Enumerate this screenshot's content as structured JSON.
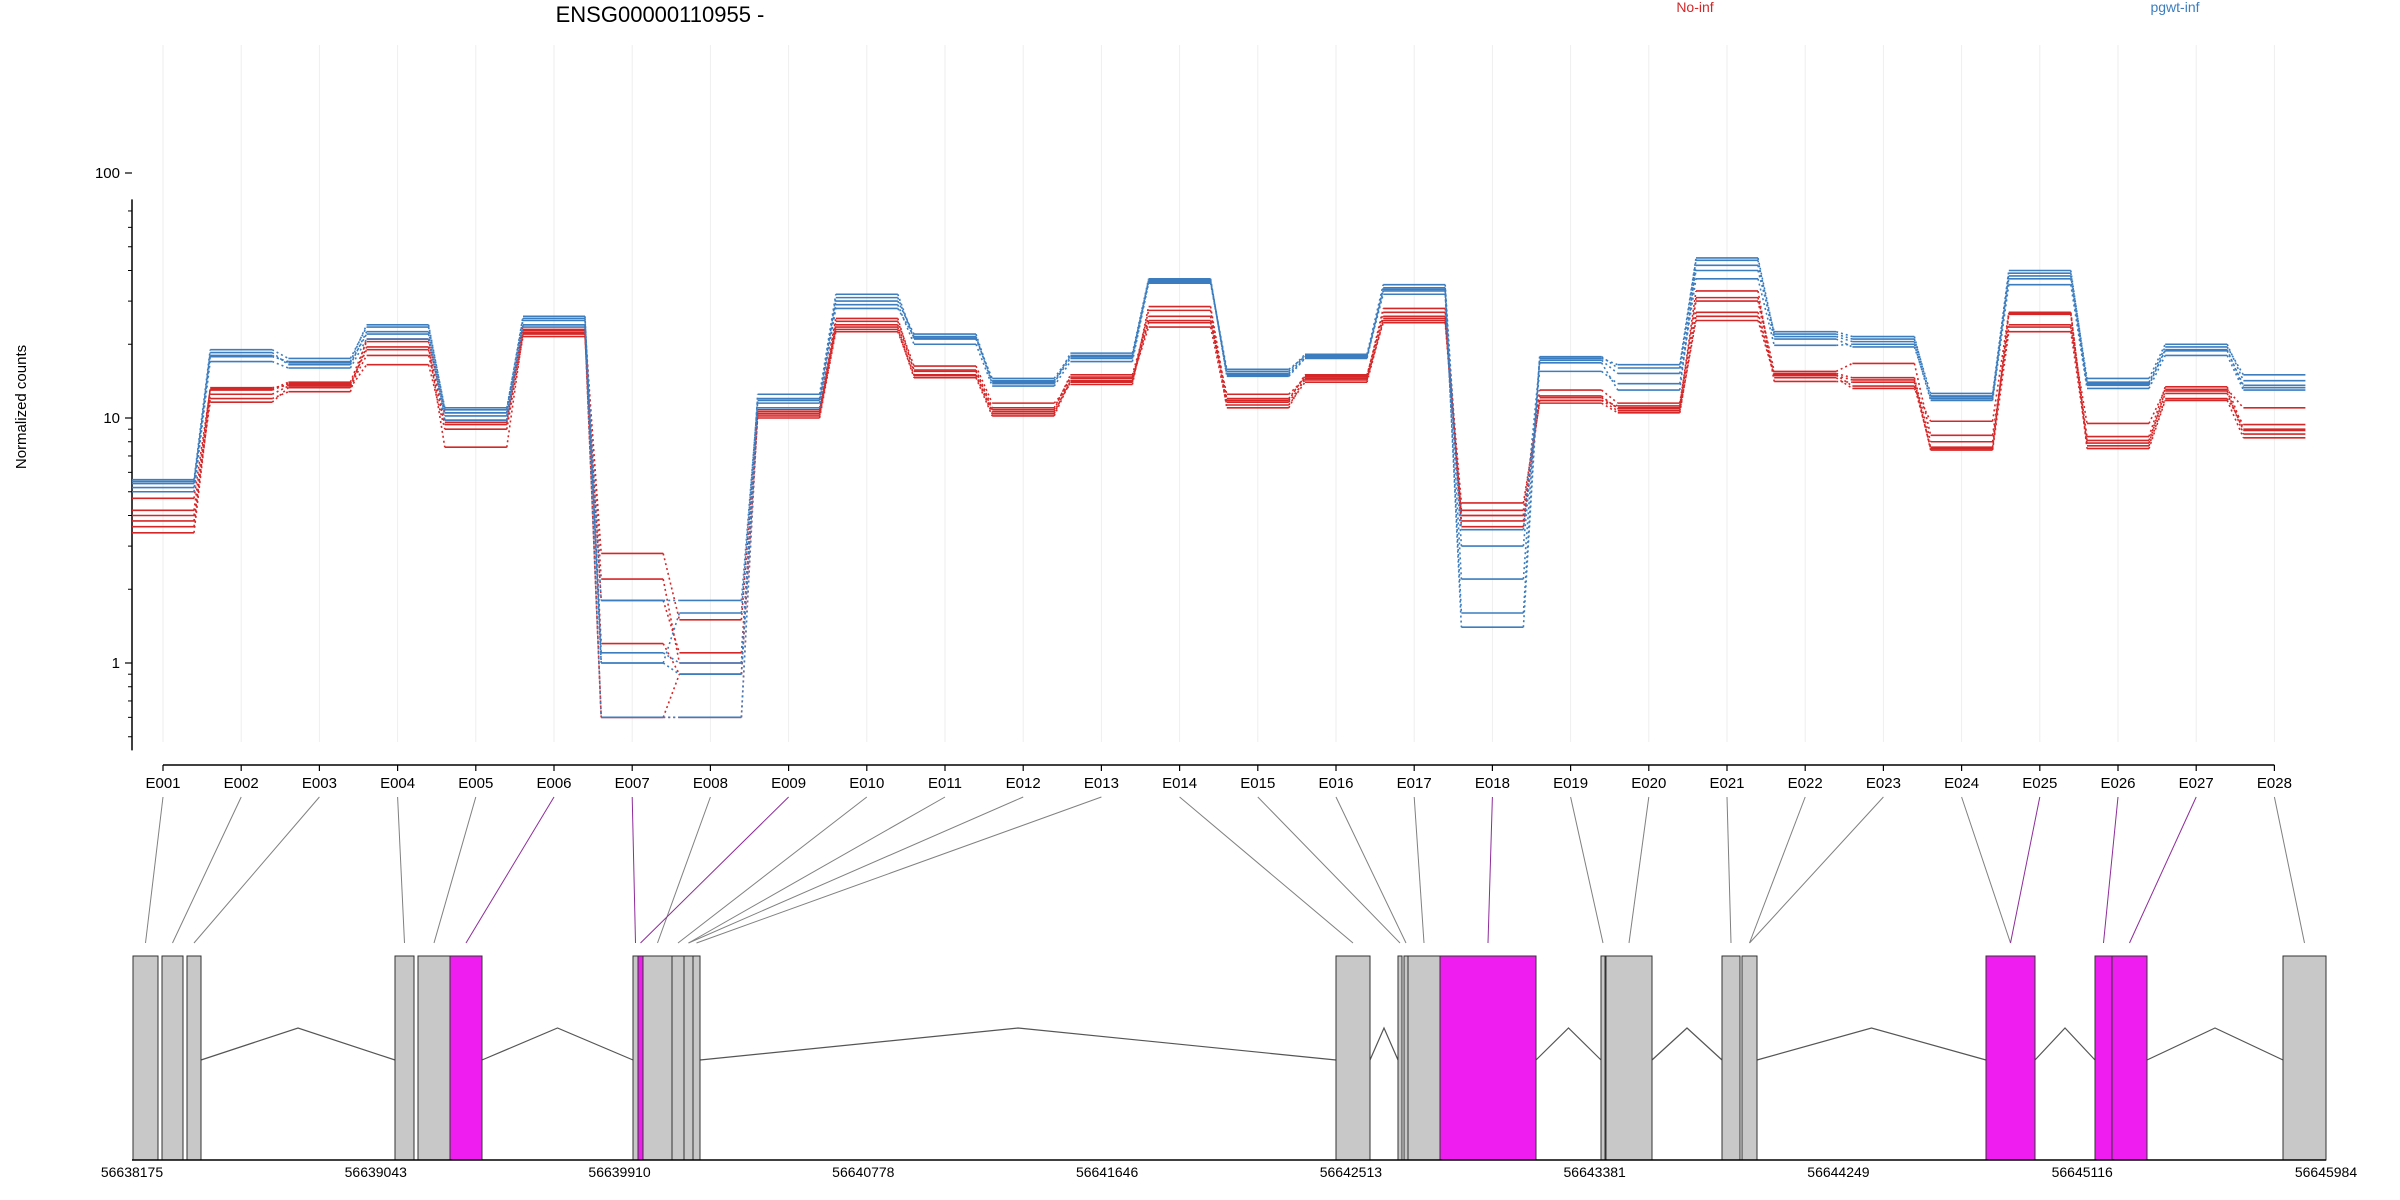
{
  "title": "ENSG00000110955 -",
  "colors": {
    "no_inf": "#d62728",
    "pgwt_inf": "#3b7dbf",
    "exon_default": "#c8c8c8",
    "exon_highlight": "#f01df0",
    "link_default": "#808080",
    "link_highlight": "#8e2c9a"
  },
  "legend": [
    {
      "name": "No-inf",
      "color": "#d62728"
    },
    {
      "name": "pgwt-inf",
      "color": "#3b7dbf"
    }
  ],
  "chart_data": {
    "type": "line",
    "title": "ENSG00000110955 -",
    "ylabel": "Normalized counts",
    "yscale": "log",
    "ylim": [
      0.44,
      78
    ],
    "y_tick_labels": [
      "1",
      "10",
      "100"
    ],
    "y_ticks": [
      1,
      10,
      100
    ],
    "categories": [
      "E001",
      "E002",
      "E003",
      "E004",
      "E005",
      "E006",
      "E007",
      "E008",
      "E009",
      "E010",
      "E011",
      "E012",
      "E013",
      "E014",
      "E015",
      "E016",
      "E017",
      "E018",
      "E019",
      "E020",
      "E021",
      "E022",
      "E023",
      "E024",
      "E025",
      "E026",
      "E027",
      "E028"
    ],
    "highlighted_exons": [
      "E006",
      "E007",
      "E009",
      "E018",
      "E025",
      "E026",
      "E027"
    ],
    "series": [
      {
        "group": "No-inf",
        "color": "#d62728",
        "values": [
          4.7,
          13.0,
          13.8,
          19.0,
          9.8,
          22.7,
          0.6,
          0.6,
          10.4,
          23.5,
          14.9,
          10.4,
          14.5,
          23.5,
          11.3,
          14.0,
          25.0,
          4.0,
          11.8,
          10.7,
          25.0,
          14.9,
          14.3,
          7.4,
          22.5,
          7.9,
          12.9,
          8.6
        ]
      },
      {
        "group": "No-inf",
        "color": "#d62728",
        "values": [
          4.2,
          13.1,
          14.0,
          20.5,
          10.5,
          24.0,
          2.2,
          1.0,
          10.8,
          25.5,
          15.5,
          10.8,
          15.0,
          26.0,
          12.0,
          14.8,
          27.0,
          3.6,
          12.1,
          11.0,
          27.0,
          15.2,
          14.6,
          8.0,
          24.0,
          8.4,
          13.4,
          9.0
        ]
      },
      {
        "group": "No-inf",
        "color": "#d62728",
        "values": [
          3.4,
          12.5,
          13.5,
          18.0,
          9.4,
          22.0,
          1.2,
          0.9,
          10.2,
          23.0,
          14.6,
          10.2,
          14.2,
          25.0,
          11.6,
          14.3,
          25.5,
          4.5,
          11.5,
          10.5,
          26.0,
          15.0,
          13.5,
          7.6,
          26.5,
          8.1,
          12.6,
          8.9
        ]
      },
      {
        "group": "No-inf",
        "color": "#d62728",
        "values": [
          4.0,
          11.6,
          13.3,
          16.5,
          9.0,
          21.5,
          1.8,
          1.1,
          10.0,
          22.5,
          15.0,
          10.6,
          14.0,
          27.5,
          11.0,
          14.7,
          28.0,
          4.2,
          13.0,
          11.5,
          30.0,
          14.6,
          13.2,
          9.7,
          27.0,
          7.7,
          12.0,
          9.4
        ]
      },
      {
        "group": "No-inf",
        "color": "#d62728",
        "values": [
          3.8,
          12.0,
          12.8,
          21.0,
          9.6,
          23.0,
          2.8,
          1.5,
          10.6,
          24.0,
          15.7,
          11.0,
          14.7,
          24.5,
          12.5,
          14.5,
          24.5,
          3.8,
          12.3,
          10.9,
          31.0,
          15.5,
          16.7,
          8.5,
          23.5,
          9.5,
          13.1,
          11.0
        ]
      },
      {
        "group": "No-inf",
        "color": "#d62728",
        "values": [
          3.6,
          13.3,
          13.6,
          19.5,
          7.6,
          22.3,
          0.6,
          0.9,
          10.4,
          24.8,
          16.3,
          11.5,
          13.7,
          28.5,
          11.8,
          15.0,
          26.0,
          4.0,
          11.8,
          11.2,
          33.0,
          14.1,
          14.0,
          7.5,
          26.8,
          7.5,
          11.8,
          8.3
        ]
      },
      {
        "group": "pgwt-inf",
        "color": "#3b7dbf",
        "values": [
          5.4,
          17.8,
          17.0,
          24.0,
          10.8,
          26.0,
          1.0,
          0.9,
          12.5,
          32.0,
          21.0,
          14.5,
          18.0,
          36.5,
          15.2,
          18.0,
          33.0,
          1.4,
          17.5,
          16.5,
          45.0,
          22.0,
          21.0,
          12.6,
          40.0,
          14.0,
          19.5,
          15.0
        ]
      },
      {
        "group": "pgwt-inf",
        "color": "#3b7dbf",
        "values": [
          5.6,
          19.0,
          17.5,
          23.5,
          11.0,
          25.0,
          1.1,
          1.0,
          12.0,
          30.0,
          22.0,
          14.0,
          17.5,
          36.0,
          15.8,
          17.8,
          32.0,
          1.6,
          17.8,
          16.0,
          44.0,
          21.5,
          20.5,
          12.2,
          39.0,
          14.5,
          20.0,
          14.2
        ]
      },
      {
        "group": "pgwt-inf",
        "color": "#3b7dbf",
        "values": [
          5.2,
          18.5,
          16.5,
          22.5,
          10.2,
          24.0,
          1.8,
          1.8,
          11.5,
          28.0,
          21.5,
          13.8,
          18.4,
          37.0,
          14.8,
          17.5,
          34.0,
          2.2,
          17.2,
          15.2,
          40.0,
          22.5,
          21.5,
          12.0,
          38.0,
          13.6,
          19.0,
          13.3
        ]
      },
      {
        "group": "pgwt-inf",
        "color": "#3b7dbf",
        "values": [
          5.0,
          17.0,
          16.0,
          21.0,
          9.8,
          23.5,
          0.6,
          0.6,
          11.0,
          29.0,
          20.0,
          13.5,
          17.0,
          35.5,
          15.5,
          18.2,
          35.0,
          3.0,
          15.5,
          13.8,
          37.0,
          19.8,
          20.0,
          11.8,
          35.0,
          13.2,
          18.0,
          13.0
        ]
      },
      {
        "group": "pgwt-inf",
        "color": "#3b7dbf",
        "values": [
          5.5,
          18.0,
          16.8,
          22.0,
          10.5,
          25.5,
          1.0,
          1.6,
          11.8,
          31.0,
          21.2,
          14.2,
          17.8,
          36.2,
          15.0,
          17.6,
          33.5,
          3.5,
          16.8,
          13.0,
          42.0,
          21.0,
          19.5,
          12.3,
          37.0,
          13.8,
          18.8,
          13.6
        ]
      }
    ]
  },
  "gene_model": {
    "coordinate_labels": [
      "56638175",
      "56639043",
      "56639910",
      "56640778",
      "56641646",
      "56642513",
      "56643381",
      "56644249",
      "56645116",
      "56645984"
    ]
  }
}
